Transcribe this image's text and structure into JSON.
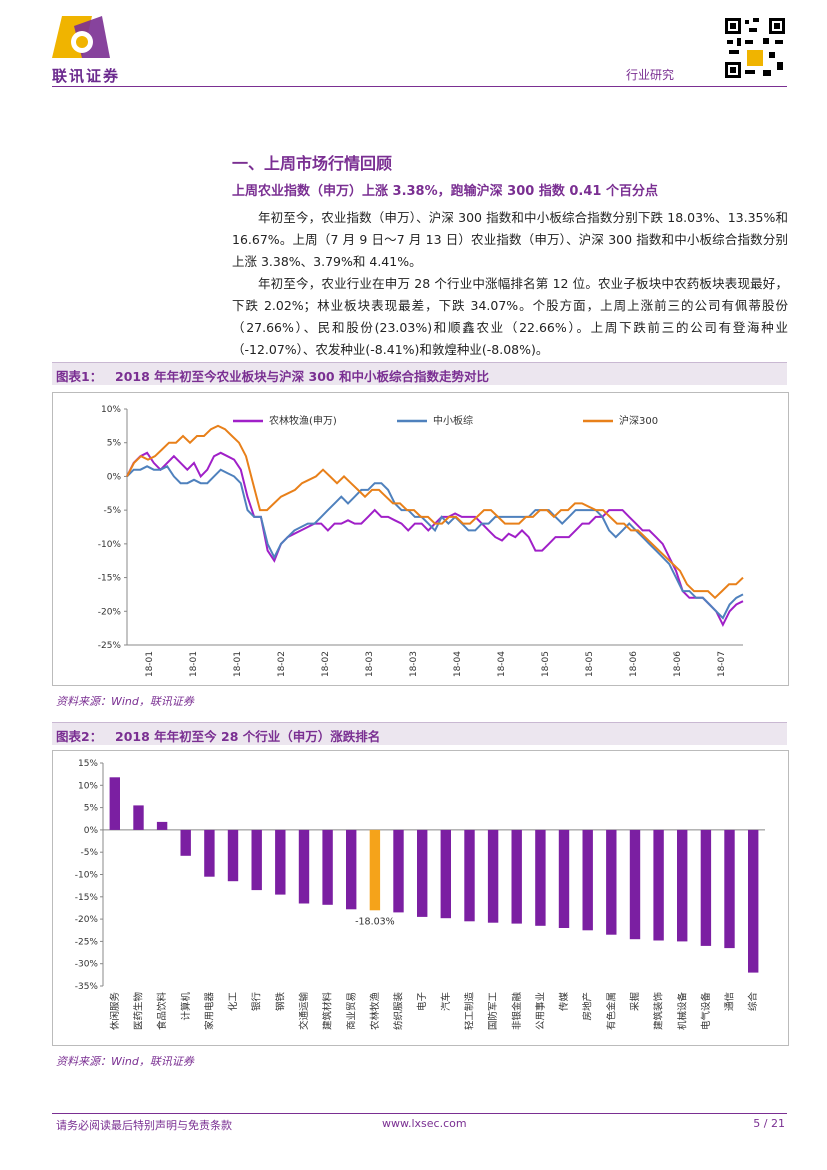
{
  "header": {
    "company": "联讯证券",
    "section_label": "行业研究"
  },
  "section": {
    "heading": "一、上周市场行情回顾",
    "subheading": "上周农业指数（申万）上涨 3.38%，跑输沪深 300 指数 0.41 个百分点",
    "paragraphs": [
      "年初至今，农业指数（申万）、沪深 300 指数和中小板综合指数分别下跌 18.03%、13.35%和 16.67%。上周（7 月 9 日～7 月 13 日）农业指数（申万）、沪深 300 指数和中小板综合指数分别上涨 3.38%、3.79%和 4.41%。",
      "年初至今，农业行业在申万 28 个行业中涨幅排名第 12 位。农业子板块中农药板块表现最好，下跌 2.02%；林业板块表现最差，下跌 34.07%。个股方面，上周上涨前三的公司有佩蒂股份（27.66%）、民和股份(23.03%)和顺鑫农业（22.66%）。上周下跌前三的公司有登海种业（-12.07%）、农发种业(-8.41%)和敦煌种业(-8.08%)。"
    ]
  },
  "figure1": {
    "label": "图表1：",
    "title": "2018 年年初至今农业板块与沪深 300 和中小板综合指数走势对比",
    "source": "资料来源：Wind，联讯证券"
  },
  "figure2": {
    "label": "图表2：",
    "title": "2018 年年初至今 28 个行业（申万）涨跌排名",
    "source": "资料来源：Wind，联讯证券"
  },
  "footer": {
    "disclaimer": "请务必阅读最后特别声明与免责条款",
    "website": "www.lxsec.com",
    "page": "5 / 21"
  },
  "chart_data": [
    {
      "type": "line",
      "title": "2018 年年初至今农业板块与沪深 300 和中小板综合指数走势对比",
      "ylim": [
        -25,
        10
      ],
      "ytick_labels": [
        "10%",
        "5%",
        "0%",
        "-5%",
        "-10%",
        "-15%",
        "-20%",
        "-25%"
      ],
      "xtick_labels": [
        "18-01",
        "18-01",
        "18-01",
        "18-02",
        "18-02",
        "18-03",
        "18-03",
        "18-04",
        "18-04",
        "18-05",
        "18-05",
        "18-06",
        "18-06",
        "18-07"
      ],
      "series": [
        {
          "name": "农林牧渔(申万)",
          "color": "#a020c8",
          "values": [
            0,
            2,
            3,
            3.5,
            2,
            1,
            2,
            3,
            2,
            1,
            2,
            0,
            1,
            3,
            3.5,
            3,
            2.5,
            1,
            -3,
            -6,
            -6,
            -11,
            -12.5,
            -10,
            -9,
            -8.5,
            -8,
            -7.5,
            -7,
            -7,
            -8,
            -7,
            -7,
            -6.5,
            -7,
            -7,
            -6,
            -5,
            -6,
            -6,
            -6.5,
            -7,
            -8,
            -7,
            -7,
            -8,
            -7,
            -6,
            -6,
            -5.5,
            -6,
            -6,
            -6,
            -7,
            -8,
            -9,
            -9.5,
            -8.5,
            -9,
            -8,
            -9,
            -11,
            -11,
            -10,
            -9,
            -9,
            -9,
            -8,
            -7,
            -7,
            -6,
            -6,
            -5,
            -5,
            -5,
            -6,
            -7,
            -8,
            -8,
            -9,
            -10,
            -12,
            -14,
            -17,
            -18,
            -18,
            -18,
            -19,
            -20,
            -22,
            -20,
            -19,
            -18.5
          ]
        },
        {
          "name": "中小板综",
          "color": "#4f81bd",
          "values": [
            0,
            1,
            1,
            1.5,
            1,
            1,
            1.5,
            0,
            -1,
            -1,
            -0.5,
            -1,
            -1,
            0,
            1,
            0.5,
            0,
            -1,
            -5,
            -6,
            -6,
            -10,
            -12,
            -10,
            -9,
            -8,
            -7.5,
            -7,
            -7,
            -6,
            -5,
            -4,
            -3,
            -4,
            -3,
            -2,
            -2,
            -1,
            -1,
            -2,
            -4,
            -5,
            -5,
            -6,
            -6,
            -7,
            -8,
            -6,
            -7,
            -6,
            -7,
            -8,
            -8,
            -7,
            -7,
            -6,
            -6,
            -6,
            -6,
            -6,
            -6,
            -5,
            -5,
            -5,
            -6,
            -7,
            -6,
            -5,
            -5,
            -5,
            -5,
            -6,
            -8,
            -9,
            -8,
            -7,
            -8,
            -9,
            -10,
            -11,
            -12,
            -13,
            -15,
            -17,
            -17,
            -18,
            -18,
            -19,
            -20,
            -21,
            -19,
            -18,
            -17.5
          ]
        },
        {
          "name": "沪深300",
          "color": "#e8801a",
          "values": [
            0,
            2,
            3,
            2.5,
            3,
            4,
            5,
            5,
            6,
            5,
            6,
            6,
            7,
            7.5,
            7,
            6,
            5,
            3,
            -1,
            -5,
            -5,
            -4,
            -3,
            -2.5,
            -2,
            -1,
            -0.5,
            0,
            1,
            0,
            -1,
            0,
            -1,
            -2,
            -3,
            -2,
            -2,
            -3,
            -4,
            -4,
            -5,
            -5,
            -6,
            -6,
            -7,
            -7,
            -6,
            -6,
            -7,
            -7,
            -6,
            -5,
            -5,
            -6,
            -7,
            -7,
            -7,
            -6,
            -6,
            -5,
            -5,
            -6,
            -5,
            -5,
            -4,
            -4,
            -4.5,
            -5,
            -5,
            -6,
            -7,
            -7,
            -8,
            -8,
            -9,
            -10,
            -11,
            -12,
            -13,
            -14,
            -16,
            -17,
            -17,
            -17,
            -18,
            -17,
            -16,
            -16,
            -15
          ]
        }
      ]
    },
    {
      "type": "bar",
      "title": "2018 年年初至今 28 个行业（申万）涨跌排名",
      "ylim": [
        -35,
        15
      ],
      "ytick_labels": [
        "15%",
        "10%",
        "5%",
        "0%",
        "-5%",
        "-10%",
        "-15%",
        "-20%",
        "-25%",
        "-30%",
        "-35%"
      ],
      "categories": [
        "休闲服务",
        "医药生物",
        "食品饮料",
        "计算机",
        "家用电器",
        "化工",
        "银行",
        "钢铁",
        "交通运输",
        "建筑材料",
        "商业贸易",
        "农林牧渔",
        "纺织服装",
        "电子",
        "汽车",
        "轻工制造",
        "国防军工",
        "非银金融",
        "公用事业",
        "传媒",
        "房地产",
        "有色金属",
        "采掘",
        "建筑装饰",
        "机械设备",
        "电气设备",
        "通信",
        "综合"
      ],
      "values": [
        11.8,
        5.5,
        1.8,
        -5.8,
        -10.5,
        -11.5,
        -13.5,
        -14.5,
        -16.5,
        -16.8,
        -17.8,
        -18.03,
        -18.5,
        -19.5,
        -19.8,
        -20.5,
        -20.8,
        -21,
        -21.5,
        -22,
        -22.5,
        -23.5,
        -24.5,
        -24.8,
        -25,
        -26,
        -26.5,
        -32
      ],
      "bar_color": "#7b1fa2",
      "highlight_color": "#f5a31a",
      "highlight_index": 11,
      "annotation": "-18.03%"
    }
  ]
}
